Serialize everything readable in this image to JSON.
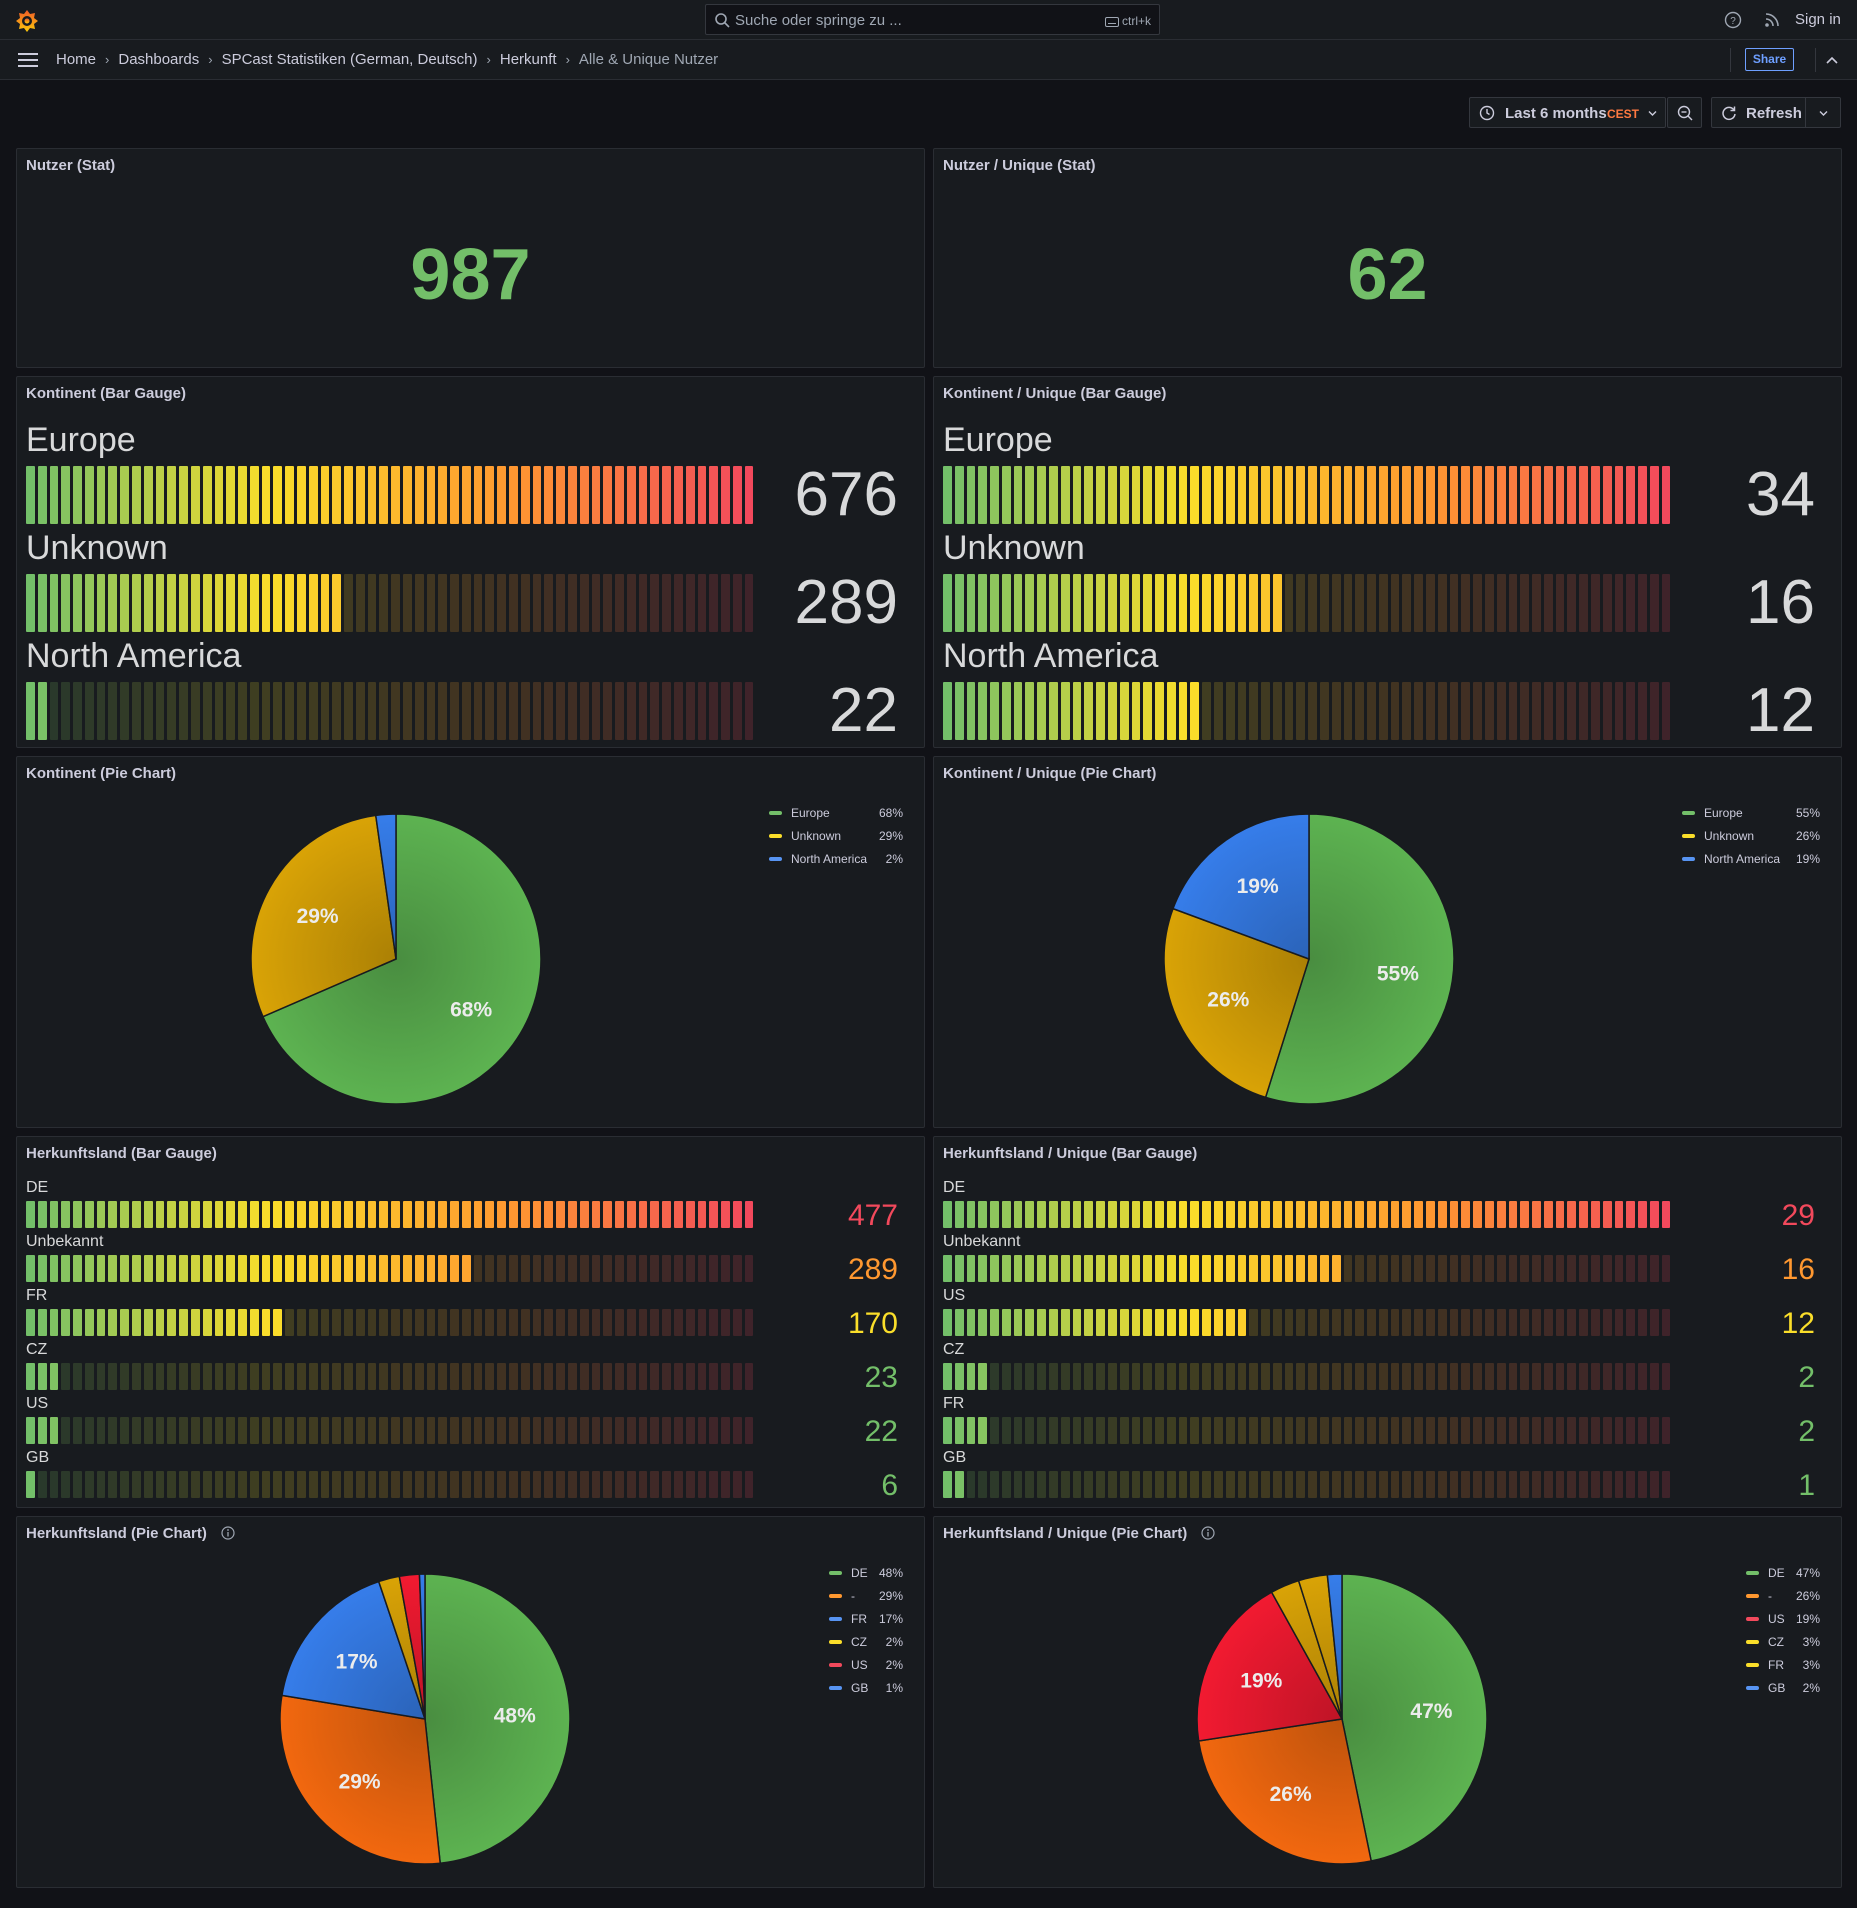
{
  "topbar": {
    "search_placeholder": "Suche oder springe zu ...",
    "search_shortcut": "ctrl+k",
    "signin_label": "Sign in"
  },
  "breadcrumb": [
    "Home",
    "Dashboards",
    "SPCast Statistiken (German, Deutsch)",
    "Herkunft",
    "Alle & Unique Nutzer"
  ],
  "toolbar": {
    "share_label": "Share",
    "time_range": "Last 6 months",
    "timezone": "CEST",
    "refresh_label": "Refresh"
  },
  "colors": {
    "green": "#73bf69",
    "yellow": "#fade2a",
    "orange": "#ff9830",
    "red": "#f2495c",
    "blue": "#5794f2",
    "pie_green": "#56a64b",
    "pie_yellow": "#c99706",
    "pie_blue": "#3274d9",
    "pie_orange": "#e0600e",
    "pie_red": "#e0182d"
  },
  "panels": {
    "stat_all": {
      "title": "Nutzer (Stat)",
      "value": "987"
    },
    "stat_unique": {
      "title": "Nutzer / Unique (Stat)",
      "value": "62"
    },
    "continent_gauge": {
      "title": "Kontinent (Bar Gauge)",
      "max": 676,
      "rows": [
        {
          "label": "Europe",
          "value": "676",
          "num": 676
        },
        {
          "label": "Unknown",
          "value": "289",
          "num": 289
        },
        {
          "label": "North America",
          "value": "22",
          "num": 22
        }
      ]
    },
    "continent_unique_gauge": {
      "title": "Kontinent / Unique (Bar Gauge)",
      "max": 34,
      "rows": [
        {
          "label": "Europe",
          "value": "34",
          "num": 34
        },
        {
          "label": "Unknown",
          "value": "16",
          "num": 16
        },
        {
          "label": "North America",
          "value": "12",
          "num": 12
        }
      ]
    },
    "country_gauge": {
      "title": "Herkunftsland (Bar Gauge)",
      "max": 477,
      "rows": [
        {
          "label": "DE",
          "value": "477",
          "num": 477,
          "color": "red"
        },
        {
          "label": "Unbekannt",
          "value": "289",
          "num": 289,
          "color": "orange"
        },
        {
          "label": "FR",
          "value": "170",
          "num": 170,
          "color": "yellow"
        },
        {
          "label": "CZ",
          "value": "23",
          "num": 23,
          "color": "green"
        },
        {
          "label": "US",
          "value": "22",
          "num": 22,
          "color": "green"
        },
        {
          "label": "GB",
          "value": "6",
          "num": 6,
          "color": "green"
        }
      ]
    },
    "country_unique_gauge": {
      "title": "Herkunftsland / Unique (Bar Gauge)",
      "max": 29,
      "rows": [
        {
          "label": "DE",
          "value": "29",
          "num": 29,
          "color": "red"
        },
        {
          "label": "Unbekannt",
          "value": "16",
          "num": 16,
          "color": "orange"
        },
        {
          "label": "US",
          "value": "12",
          "num": 12,
          "color": "yellow"
        },
        {
          "label": "CZ",
          "value": "2",
          "num": 2,
          "color": "green"
        },
        {
          "label": "FR",
          "value": "2",
          "num": 2,
          "color": "green"
        },
        {
          "label": "GB",
          "value": "1",
          "num": 1,
          "color": "green"
        }
      ]
    }
  },
  "chart_data": [
    {
      "type": "pie",
      "title": "Kontinent (Pie Chart)",
      "categories": [
        "Europe",
        "Unknown",
        "North America"
      ],
      "values": [
        676,
        289,
        22
      ],
      "legend": [
        "68%",
        "29%",
        "2%"
      ],
      "slice_labels": [
        "68%",
        "29%",
        ""
      ],
      "colors": [
        "pie_green",
        "pie_yellow",
        "pie_blue"
      ],
      "legend_colors": [
        "green",
        "yellow",
        "blue"
      ]
    },
    {
      "type": "pie",
      "title": "Kontinent / Unique (Pie Chart)",
      "categories": [
        "Europe",
        "Unknown",
        "North America"
      ],
      "values": [
        34,
        16,
        12
      ],
      "legend": [
        "55%",
        "26%",
        "19%"
      ],
      "slice_labels": [
        "55%",
        "26%",
        "19%"
      ],
      "colors": [
        "pie_green",
        "pie_yellow",
        "pie_blue"
      ],
      "legend_colors": [
        "green",
        "yellow",
        "blue"
      ]
    },
    {
      "type": "pie",
      "title": "Herkunftsland (Pie Chart)",
      "categories": [
        "DE",
        "-",
        "FR",
        "CZ",
        "US",
        "GB"
      ],
      "values": [
        477,
        289,
        170,
        23,
        22,
        6
      ],
      "legend": [
        "48%",
        "29%",
        "17%",
        "2%",
        "2%",
        "1%"
      ],
      "slice_labels": [
        "48%",
        "29%",
        "17%",
        "",
        "",
        ""
      ],
      "colors": [
        "pie_green",
        "pie_orange",
        "pie_blue",
        "pie_yellow",
        "pie_red",
        "pie_blue"
      ],
      "legend_colors": [
        "green",
        "orange",
        "blue",
        "yellow",
        "red",
        "blue"
      ]
    },
    {
      "type": "pie",
      "title": "Herkunftsland / Unique (Pie Chart)",
      "categories": [
        "DE",
        "-",
        "US",
        "CZ",
        "FR",
        "GB"
      ],
      "values": [
        29,
        16,
        12,
        2,
        2,
        1
      ],
      "legend": [
        "47%",
        "26%",
        "19%",
        "3%",
        "3%",
        "2%"
      ],
      "slice_labels": [
        "47%",
        "26%",
        "19%",
        "",
        "",
        ""
      ],
      "colors": [
        "pie_green",
        "pie_orange",
        "pie_red",
        "pie_yellow",
        "pie_yellow",
        "pie_blue"
      ],
      "legend_colors": [
        "green",
        "orange",
        "red",
        "yellow",
        "yellow",
        "blue"
      ]
    }
  ]
}
